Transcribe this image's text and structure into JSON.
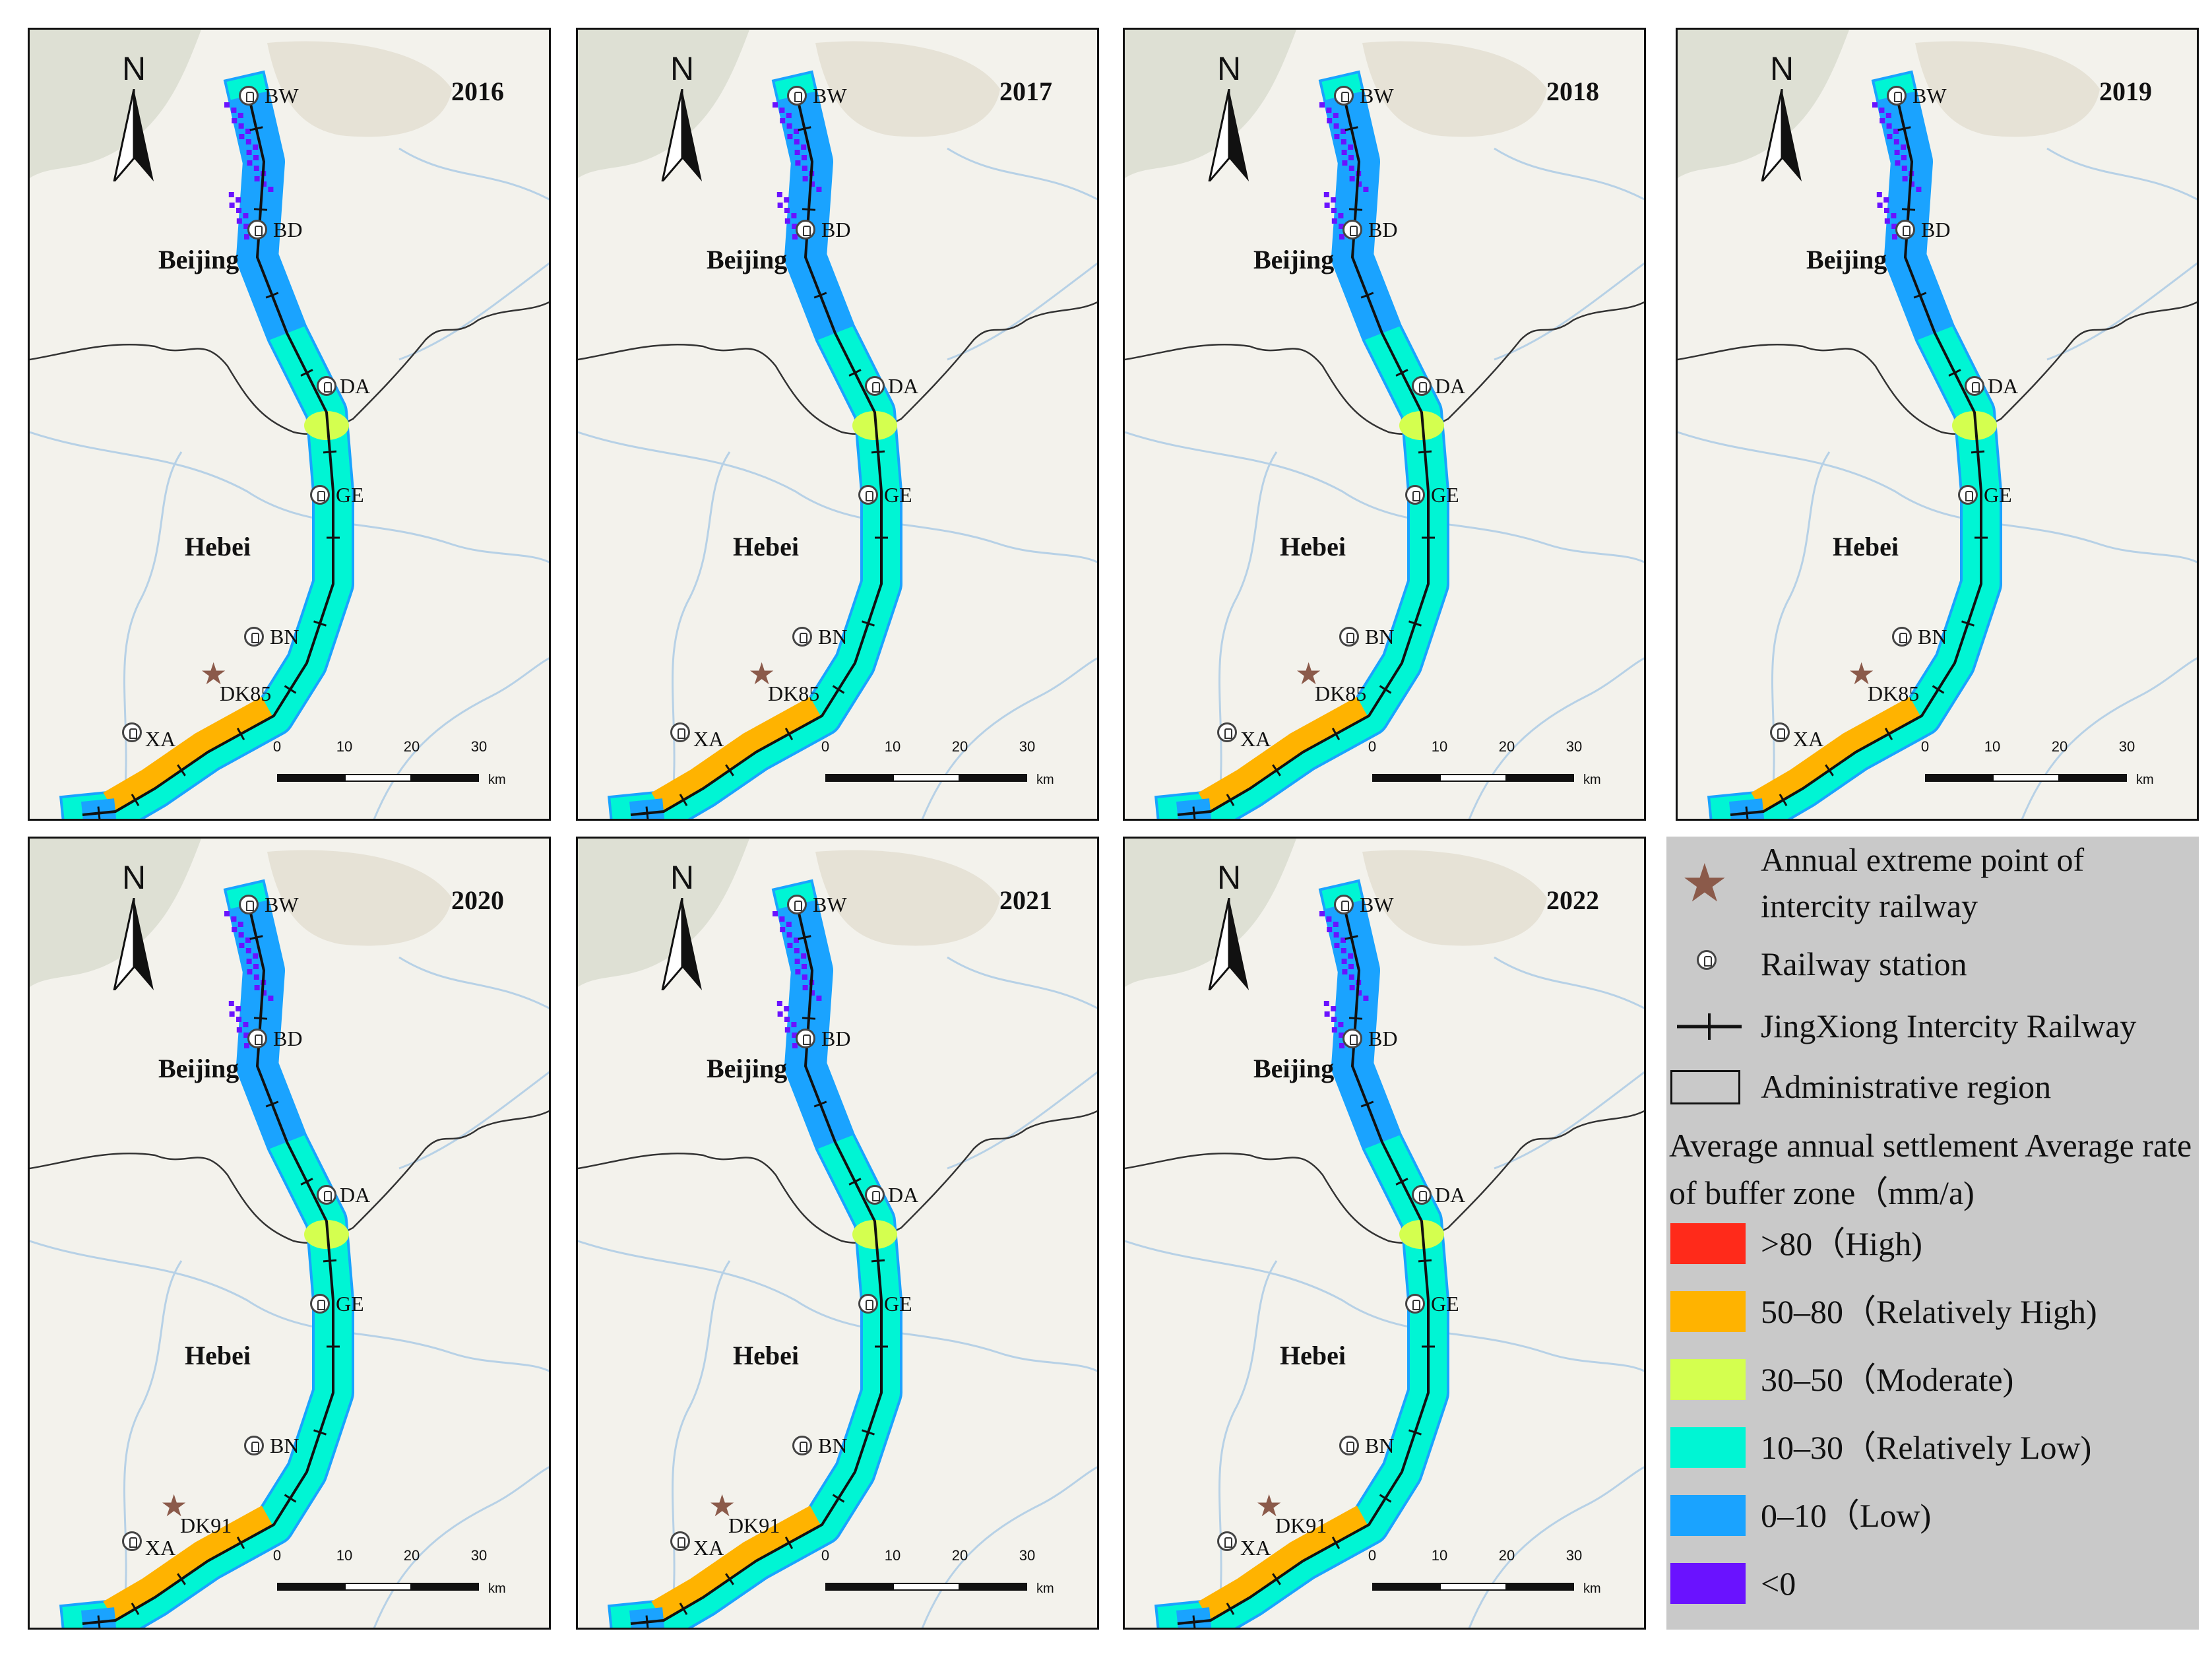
{
  "panels": [
    {
      "year": "2016",
      "extreme_point": "DK85"
    },
    {
      "year": "2017",
      "extreme_point": "DK85"
    },
    {
      "year": "2018",
      "extreme_point": "DK85"
    },
    {
      "year": "2019",
      "extreme_point": "DK85"
    },
    {
      "year": "2020",
      "extreme_point": "DK91"
    },
    {
      "year": "2021",
      "extreme_point": "DK91"
    },
    {
      "year": "2022",
      "extreme_point": "DK91"
    }
  ],
  "north_arrow_label": "N",
  "regions": {
    "beijing": "Beijing",
    "hebei": "Hebei"
  },
  "stations": [
    "BW",
    "BD",
    "DA",
    "GE",
    "BN",
    "XA"
  ],
  "scale": {
    "ticks": [
      "0",
      "10",
      "20",
      "30"
    ],
    "unit": "km"
  },
  "legend": {
    "extreme_point": "Annual extreme point of intercity railway",
    "station": "Railway station",
    "railway": "JingXiong Intercity Railway",
    "admin": "Administrative region",
    "rate_title": "Average annual settlement Average rate of buffer zone（mm/a)",
    "classes": [
      {
        "label": ">80（High)",
        "color": "#ff2a1a"
      },
      {
        "label": "50–80（Relatively High)",
        "color": "#ffb300"
      },
      {
        "label": "30–50（Moderate)",
        "color": "#d4ff4f"
      },
      {
        "label": "10–30（Relatively Low)",
        "color": "#00f5d4"
      },
      {
        "label": "0–10（Low)",
        "color": "#1aa3ff"
      },
      {
        "label": "<0",
        "color": "#6a12ff"
      }
    ]
  },
  "colors": {
    "star": "#8b5a4a",
    "map_bg": "#f3f2ec",
    "legend_bg": "#c9c9c9"
  }
}
